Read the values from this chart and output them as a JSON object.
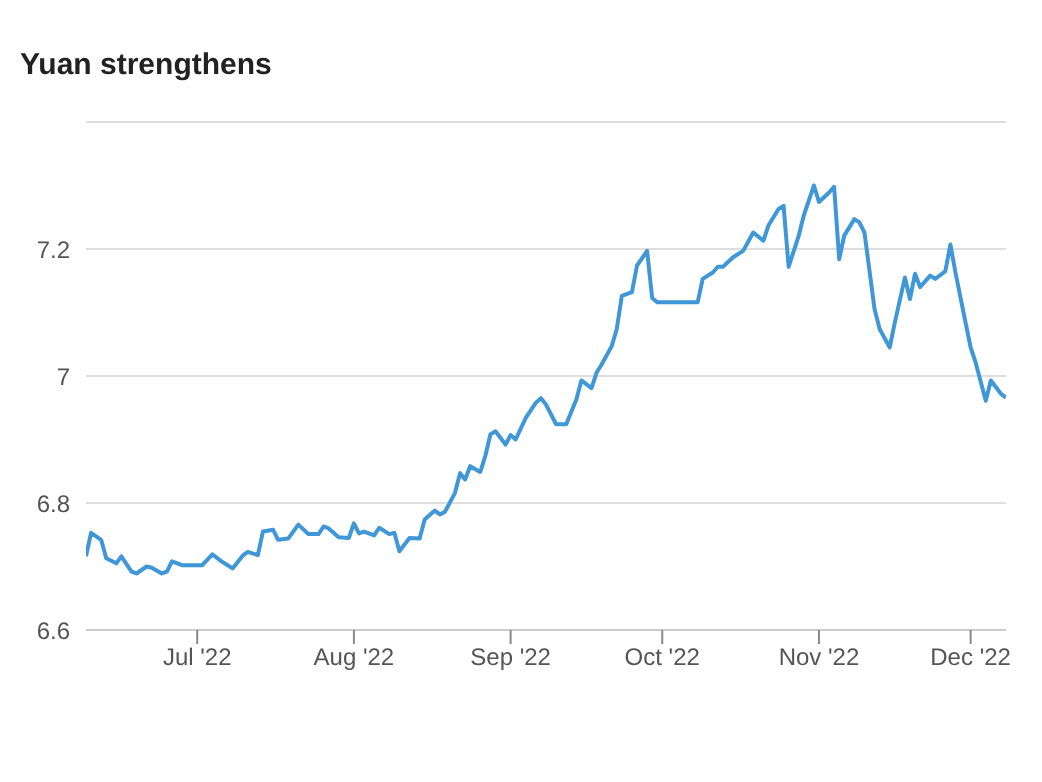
{
  "chart_data": {
    "type": "line",
    "title": "Yuan strengthens",
    "x": [
      "2022-06-09",
      "2022-06-10",
      "2022-06-12",
      "2022-06-13",
      "2022-06-15",
      "2022-06-16",
      "2022-06-18",
      "2022-06-19",
      "2022-06-21",
      "2022-06-22",
      "2022-06-24",
      "2022-06-25",
      "2022-06-26",
      "2022-06-28",
      "2022-07-02",
      "2022-07-04",
      "2022-07-06",
      "2022-07-08",
      "2022-07-10",
      "2022-07-11",
      "2022-07-13",
      "2022-07-14",
      "2022-07-16",
      "2022-07-17",
      "2022-07-19",
      "2022-07-21",
      "2022-07-23",
      "2022-07-25",
      "2022-07-26",
      "2022-07-27",
      "2022-07-29",
      "2022-07-31",
      "2022-08-01",
      "2022-08-02",
      "2022-08-03",
      "2022-08-05",
      "2022-08-06",
      "2022-08-08",
      "2022-08-09",
      "2022-08-10",
      "2022-08-12",
      "2022-08-14",
      "2022-08-15",
      "2022-08-17",
      "2022-08-18",
      "2022-08-19",
      "2022-08-21",
      "2022-08-22",
      "2022-08-23",
      "2022-08-24",
      "2022-08-26",
      "2022-08-27",
      "2022-08-28",
      "2022-08-29",
      "2022-08-31",
      "2022-09-01",
      "2022-09-02",
      "2022-09-04",
      "2022-09-06",
      "2022-09-07",
      "2022-09-08",
      "2022-09-10",
      "2022-09-12",
      "2022-09-14",
      "2022-09-15",
      "2022-09-17",
      "2022-09-18",
      "2022-09-19",
      "2022-09-21",
      "2022-09-22",
      "2022-09-23",
      "2022-09-25",
      "2022-09-26",
      "2022-09-28",
      "2022-09-29",
      "2022-09-30",
      "2022-10-08",
      "2022-10-09",
      "2022-10-11",
      "2022-10-12",
      "2022-10-13",
      "2022-10-15",
      "2022-10-17",
      "2022-10-19",
      "2022-10-21",
      "2022-10-22",
      "2022-10-24",
      "2022-10-25",
      "2022-10-26",
      "2022-10-28",
      "2022-10-29",
      "2022-10-31",
      "2022-11-01",
      "2022-11-03",
      "2022-11-04",
      "2022-11-05",
      "2022-11-06",
      "2022-11-08",
      "2022-11-09",
      "2022-11-10",
      "2022-11-12",
      "2022-11-13",
      "2022-11-15",
      "2022-11-16",
      "2022-11-18",
      "2022-11-19",
      "2022-11-20",
      "2022-11-21",
      "2022-11-23",
      "2022-11-24",
      "2022-11-26",
      "2022-11-27",
      "2022-11-28",
      "2022-11-30",
      "2022-12-01",
      "2022-12-02",
      "2022-12-04",
      "2022-12-05",
      "2022-12-07",
      "2022-12-08"
    ],
    "series": [
      {
        "color": "#3f97d7",
        "values": [
          6.716,
          6.753,
          6.742,
          6.713,
          6.705,
          6.716,
          6.692,
          6.689,
          6.7,
          6.698,
          6.689,
          6.692,
          6.708,
          6.702,
          6.702,
          6.719,
          6.707,
          6.697,
          6.717,
          6.723,
          6.718,
          6.755,
          6.758,
          6.742,
          6.744,
          6.766,
          6.751,
          6.751,
          6.763,
          6.76,
          6.746,
          6.745,
          6.768,
          6.752,
          6.755,
          6.749,
          6.761,
          6.751,
          6.753,
          6.724,
          6.745,
          6.744,
          6.774,
          6.788,
          6.782,
          6.786,
          6.816,
          6.847,
          6.837,
          6.858,
          6.849,
          6.874,
          6.908,
          6.913,
          6.892,
          6.907,
          6.9,
          6.934,
          6.958,
          6.965,
          6.955,
          6.924,
          6.924,
          6.963,
          6.993,
          6.981,
          7.005,
          7.018,
          7.047,
          7.074,
          7.126,
          7.132,
          7.174,
          7.197,
          7.123,
          7.116,
          7.116,
          7.153,
          7.163,
          7.172,
          7.172,
          7.187,
          7.197,
          7.226,
          7.213,
          7.237,
          7.263,
          7.268,
          7.172,
          7.221,
          7.253,
          7.3,
          7.274,
          7.289,
          7.298,
          7.184,
          7.221,
          7.247,
          7.242,
          7.226,
          7.105,
          7.074,
          7.045,
          7.084,
          7.155,
          7.121,
          7.161,
          7.14,
          7.158,
          7.153,
          7.165,
          7.207,
          7.163,
          7.084,
          7.045,
          7.021,
          6.961,
          6.993,
          6.972,
          6.966
        ]
      }
    ],
    "xlim": [
      "2022-06-09",
      "2022-12-08"
    ],
    "xticks": [
      {
        "value": "2022-07-01",
        "label": "Jul '22"
      },
      {
        "value": "2022-08-01",
        "label": "Aug '22"
      },
      {
        "value": "2022-09-01",
        "label": "Sep '22"
      },
      {
        "value": "2022-10-01",
        "label": "Oct '22"
      },
      {
        "value": "2022-11-01",
        "label": "Nov '22"
      },
      {
        "value": "2022-12-01",
        "label": "Dec '22"
      }
    ],
    "ylim": [
      6.6,
      7.4
    ],
    "yticks": [
      6.6,
      6.8,
      7,
      7.2,
      {
        "value": 7.4,
        "label": null
      }
    ],
    "grid": "y",
    "legend": false,
    "marker": "none",
    "line_style": "solid"
  }
}
